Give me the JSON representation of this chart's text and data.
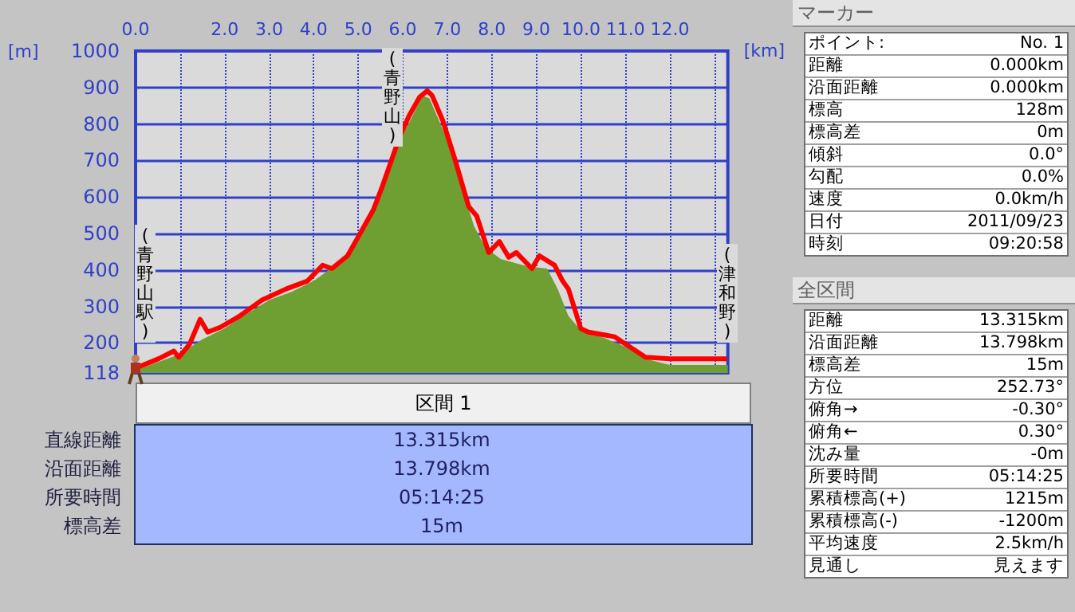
{
  "chart_data": [
    {
      "type": "line",
      "xlabel": "[km]",
      "ylabel": "[m]",
      "xlim": [
        0,
        13.3
      ],
      "ylim": [
        118,
        1000
      ],
      "xticks": [
        {
          "value": 0,
          "label": "0.0"
        },
        {
          "value": 1,
          "label": null
        },
        {
          "value": 2,
          "label": "2.0"
        },
        {
          "value": 3,
          "label": "3.0"
        },
        {
          "value": 4,
          "label": "4.0"
        },
        {
          "value": 5,
          "label": "5.0"
        },
        {
          "value": 6,
          "label": "6.0"
        },
        {
          "value": 7,
          "label": "7.0"
        },
        {
          "value": 8,
          "label": "8.0"
        },
        {
          "value": 9,
          "label": "9.0"
        },
        {
          "value": 10,
          "label": "10.0"
        },
        {
          "value": 11,
          "label": "11.0"
        },
        {
          "value": 12,
          "label": "12.0"
        },
        {
          "value": 13,
          "label": null
        }
      ],
      "yticks": [
        118,
        200,
        300,
        400,
        500,
        600,
        700,
        800,
        900,
        1000
      ],
      "grid": true,
      "marker": "none",
      "line_style": "solid",
      "series": [
        {
          "type": "area",
          "color": "#6f9e33",
          "x": [
            0,
            1,
            1.5,
            2,
            2.5,
            3,
            3.5,
            4,
            4.4,
            4.8,
            5,
            5.5,
            6,
            6.45,
            6.6,
            6.97,
            7.3,
            7.6,
            7.86,
            8.2,
            8.8,
            9.24,
            9.48,
            9.72,
            10,
            10.5,
            11,
            11.5,
            12,
            13.3
          ],
          "values": [
            125,
            170,
            210,
            240,
            280,
            318,
            340,
            370,
            405,
            440,
            480,
            620,
            770,
            878,
            870,
            765,
            640,
            520,
            461,
            430,
            410,
            404,
            348,
            274,
            235,
            215,
            190,
            155,
            140,
            140
          ]
        },
        {
          "type": "line",
          "color": "#ff0000",
          "x": [
            0,
            0.52,
            0.86,
            0.97,
            1.21,
            1.45,
            1.62,
            1.9,
            2.34,
            2.83,
            3.38,
            3.86,
            4.2,
            4.41,
            4.76,
            5,
            5.34,
            5.52,
            5.93,
            6.14,
            6.38,
            6.55,
            6.66,
            6.9,
            7.17,
            7.48,
            7.66,
            7.93,
            8.17,
            8.38,
            8.55,
            8.9,
            9.07,
            9.41,
            9.59,
            9.72,
            10,
            10.17,
            10.76,
            10.97,
            11.45,
            12,
            12.93,
            13.28
          ],
          "values": [
            131,
            157,
            178,
            161,
            196,
            265,
            230,
            243,
            274,
            317,
            348,
            370,
            413,
            404,
            439,
            491,
            565,
            622,
            765,
            822,
            874,
            891,
            878,
            809,
            704,
            574,
            548,
            448,
            478,
            435,
            448,
            404,
            439,
            413,
            370,
            348,
            239,
            230,
            217,
            200,
            161,
            157,
            157,
            157
          ]
        }
      ],
      "annotations": [
        "(青野山)",
        "(青野山駅)",
        "(津和野)"
      ]
    },
    {
      "type": "other",
      "title": "区間 1",
      "annotations": [
        "直線距離",
        "13.315km",
        "沿面距離",
        "13.798km",
        "所要時間",
        "05:14:25",
        "標高差",
        "15m"
      ]
    },
    {
      "type": "other",
      "title": "マーカー",
      "annotations": [
        "ポイント:",
        "No. 1",
        "距離",
        "0.000km",
        "沿面距離",
        "0.000km",
        "標高",
        "128m",
        "標高差",
        "0m",
        "傾斜",
        "0.0°",
        "勾配",
        "0.0%",
        "速度",
        "0.0km/h",
        "日付",
        "2011/09/23",
        "時刻",
        "09:20:58"
      ]
    },
    {
      "type": "other",
      "title": "全区間",
      "annotations": [
        "距離",
        "13.315km",
        "沿面距離",
        "13.798km",
        "標高差",
        "15m",
        "方位",
        "252.73°",
        "俯角→",
        "-0.30°",
        "俯角←",
        "0.30°",
        "沈み量",
        "-0m",
        "所要時間",
        "05:14:25",
        "累積標高(+)",
        "1215m",
        "累積標高(-)",
        "-1200m",
        "平均速度",
        "2.5km/h",
        "見通し",
        "見えます"
      ]
    }
  ]
}
